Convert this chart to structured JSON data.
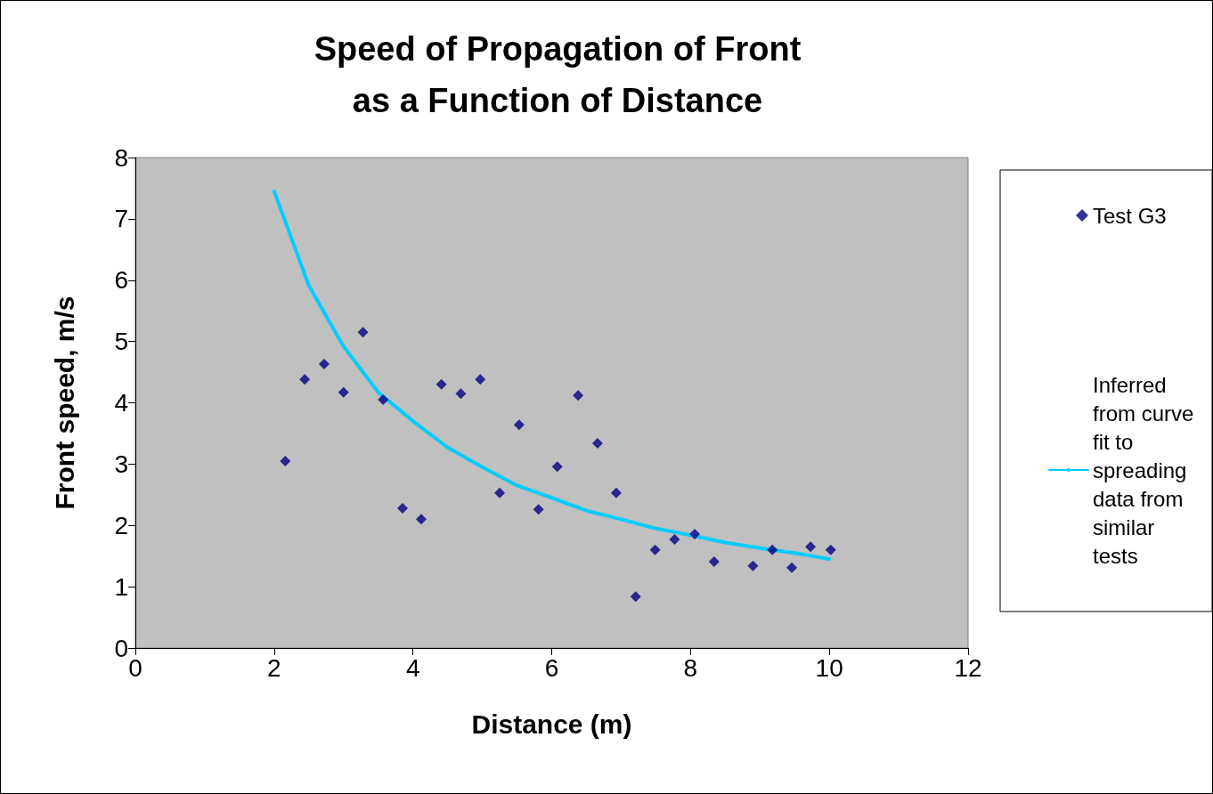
{
  "chart_data": {
    "type": "scatter",
    "title": "Speed of Propagation of Front\nas a Function of Distance",
    "xlabel": "Distance (m)",
    "ylabel": "Front speed, m/s",
    "xlim": [
      0,
      12
    ],
    "ylim": [
      0,
      8
    ],
    "xticks": [
      0,
      2,
      4,
      6,
      8,
      10,
      12
    ],
    "yticks": [
      0,
      1,
      2,
      3,
      4,
      5,
      6,
      7,
      8
    ],
    "legend": "right",
    "series": [
      {
        "name": "Test G3",
        "marker": "diamond",
        "color": "#000080",
        "x": [
          2.16,
          2.44,
          2.72,
          3.0,
          3.28,
          3.57,
          3.85,
          4.12,
          4.41,
          4.69,
          4.97,
          5.25,
          5.53,
          5.81,
          6.08,
          6.38,
          6.66,
          6.93,
          7.21,
          7.49,
          7.77,
          8.06,
          8.34,
          8.9,
          9.18,
          9.46,
          9.73,
          10.02
        ],
        "values": [
          3.05,
          4.38,
          4.63,
          4.17,
          5.15,
          4.05,
          2.28,
          2.1,
          4.3,
          4.15,
          4.38,
          2.53,
          3.64,
          2.26,
          2.96,
          4.12,
          3.34,
          2.53,
          0.84,
          1.6,
          1.77,
          1.86,
          1.41,
          1.34,
          1.6,
          1.31,
          1.65,
          1.6
        ]
      },
      {
        "name": "Inferred from curve fit to spreading data from similar tests",
        "type": "line",
        "marker": "none",
        "color": "#00ccff",
        "x": [
          2,
          2.5,
          3,
          3.5,
          4,
          4.5,
          5,
          5.5,
          6,
          6.5,
          7,
          7.5,
          8,
          8.5,
          9,
          9.5,
          10
        ],
        "values": [
          7.45,
          5.91,
          4.92,
          4.17,
          3.7,
          3.27,
          2.95,
          2.65,
          2.45,
          2.24,
          2.1,
          1.95,
          1.84,
          1.72,
          1.63,
          1.55,
          1.45
        ]
      }
    ]
  }
}
